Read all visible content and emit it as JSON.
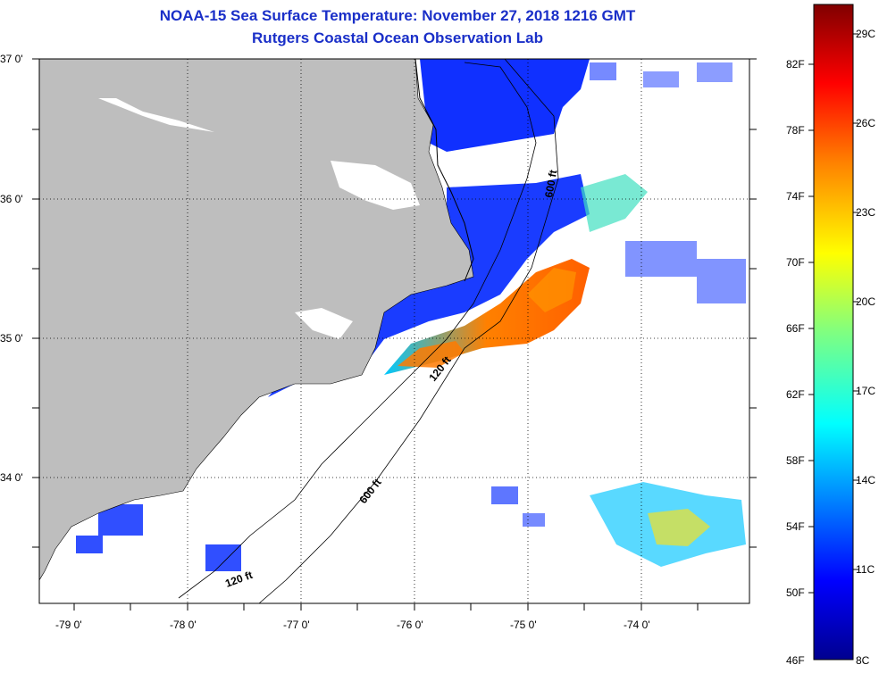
{
  "title": {
    "line1": "NOAA-15 Sea Surface Temperature:  November 27, 2018 1216 GMT",
    "line2": "Rutgers Coastal Ocean Observation Lab"
  },
  "colors": {
    "title": "#1a2fc8",
    "land": "#bebebe",
    "ocean_nodata": "#ffffff",
    "colormap": [
      "#00008f",
      "#0000ff",
      "#0080ff",
      "#00ffff",
      "#80ff80",
      "#ffff00",
      "#ff8000",
      "#ff0000",
      "#800000"
    ]
  },
  "map": {
    "lat_labels": [
      "37 0'",
      "36 0'",
      "35 0'",
      "34 0'"
    ],
    "lon_labels": [
      "-79 0'",
      "-78 0'",
      "-77 0'",
      "-76 0'",
      "-75 0'",
      "-74 0'"
    ],
    "contour_labels": [
      "600 ft",
      "120 ft",
      "600 ft",
      "120 ft"
    ]
  },
  "colorbar": {
    "f_labels": [
      "82F",
      "78F",
      "74F",
      "70F",
      "66F",
      "62F",
      "58F",
      "54F",
      "50F",
      "46F"
    ],
    "c_labels": [
      "29C",
      "26C",
      "23C",
      "20C",
      "17C",
      "14C",
      "11C",
      "8C"
    ]
  }
}
